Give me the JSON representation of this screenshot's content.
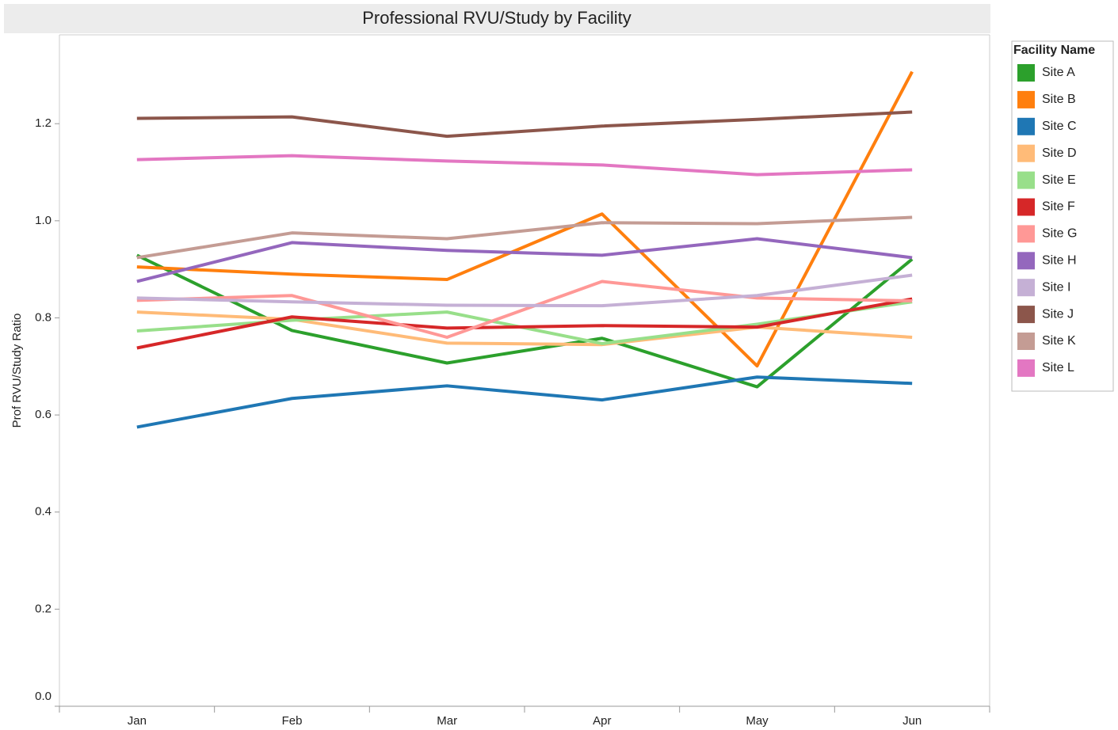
{
  "chart_data": {
    "type": "line",
    "title": "Professional RVU/Study by Facility",
    "y_label": "Prof RVU/Study Ratio",
    "legend_title": "Facility Name",
    "legend": "right",
    "categories": [
      "Jan",
      "Feb",
      "Mar",
      "Apr",
      "May",
      "Jun"
    ],
    "ylim": [
      0,
      1.383
    ],
    "yticks": [
      {
        "value": 0,
        "label": "0.0"
      },
      0.2,
      0.4,
      0.6,
      0.8,
      {
        "value": 1,
        "label": "1.0"
      },
      1.2
    ],
    "series": [
      {
        "name": "Site A",
        "color": "#2ca02c",
        "values": [
          0.929,
          0.774,
          0.707,
          0.758,
          0.658,
          0.921
        ]
      },
      {
        "name": "Site B",
        "color": "#ff7f0e",
        "values": [
          0.905,
          0.89,
          0.879,
          1.014,
          0.701,
          1.307
        ]
      },
      {
        "name": "Site C",
        "color": "#1f77b4",
        "values": [
          0.575,
          0.634,
          0.66,
          0.631,
          0.678,
          0.665
        ]
      },
      {
        "name": "Site D",
        "color": "#ffbb78",
        "values": [
          0.812,
          0.797,
          0.748,
          0.745,
          0.781,
          0.76
        ]
      },
      {
        "name": "Site E",
        "color": "#98df8a",
        "values": [
          0.773,
          0.795,
          0.812,
          0.747,
          0.787,
          0.833
        ]
      },
      {
        "name": "Site F",
        "color": "#d62728",
        "values": [
          0.738,
          0.802,
          0.779,
          0.784,
          0.781,
          0.839
        ]
      },
      {
        "name": "Site G",
        "color": "#ff9896",
        "values": [
          0.836,
          0.846,
          0.76,
          0.875,
          0.841,
          0.835
        ]
      },
      {
        "name": "Site H",
        "color": "#9467bd",
        "values": [
          0.875,
          0.955,
          0.939,
          0.929,
          0.963,
          0.924
        ]
      },
      {
        "name": "Site I",
        "color": "#c5b0d5",
        "values": [
          0.841,
          0.833,
          0.826,
          0.825,
          0.846,
          0.888
        ]
      },
      {
        "name": "Site J",
        "color": "#8c564b",
        "values": [
          1.211,
          1.214,
          1.174,
          1.195,
          1.209,
          1.224
        ]
      },
      {
        "name": "Site K",
        "color": "#c49c94",
        "values": [
          0.924,
          0.975,
          0.963,
          0.996,
          0.994,
          1.007
        ]
      },
      {
        "name": "Site L",
        "color": "#e377c2",
        "values": [
          1.126,
          1.134,
          1.123,
          1.115,
          1.095,
          1.105
        ]
      }
    ]
  }
}
